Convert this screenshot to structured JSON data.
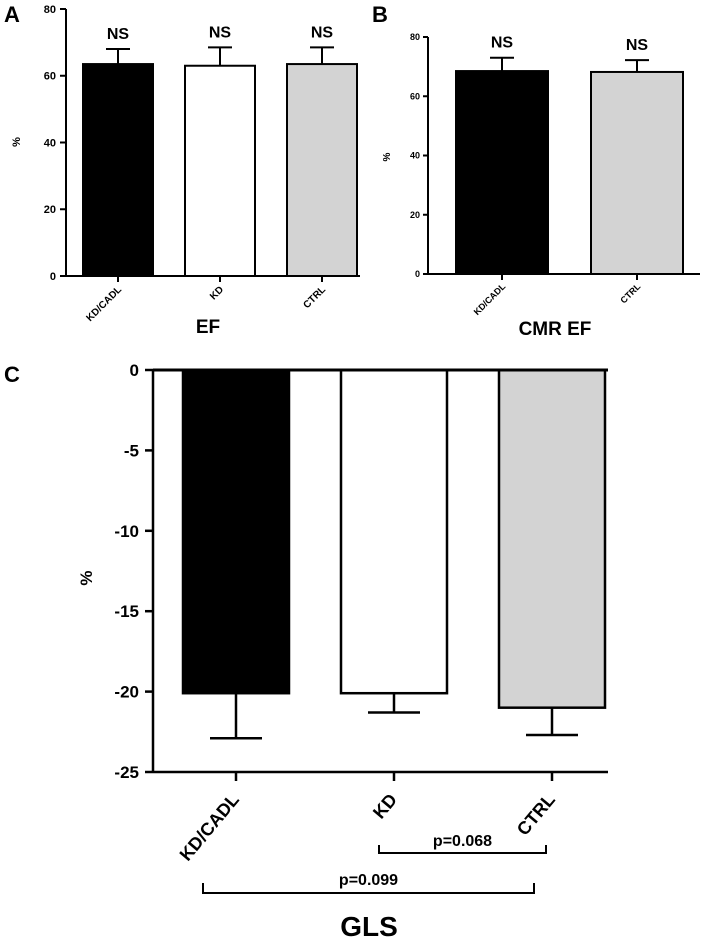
{
  "panels": {
    "a": "A",
    "b": "B",
    "c": "C"
  },
  "chart_data": [
    {
      "type": "bar",
      "panel": "A",
      "xlabel": "EF",
      "ylabel": "%",
      "ylim": [
        0,
        80
      ],
      "yticks": [
        0,
        20,
        40,
        60,
        80
      ],
      "categories": [
        "KD/CADL",
        "KD",
        "CTRL"
      ],
      "values": [
        63.5,
        63.0,
        63.5
      ],
      "errors": [
        4.5,
        5.5,
        5.0
      ],
      "colors": [
        "#000000",
        "#ffffff",
        "#d3d3d3"
      ],
      "annotations": [
        "NS",
        "NS",
        "NS"
      ]
    },
    {
      "type": "bar",
      "panel": "B",
      "xlabel": "CMR EF",
      "ylabel": "%",
      "ylim": [
        0,
        80
      ],
      "yticks": [
        0,
        20,
        40,
        60,
        80
      ],
      "categories": [
        "KD/CADL",
        "CTRL"
      ],
      "values": [
        68.5,
        68.2
      ],
      "errors": [
        4.5,
        4.0
      ],
      "colors": [
        "#000000",
        "#d3d3d3"
      ],
      "annotations": [
        "NS",
        "NS"
      ]
    },
    {
      "type": "bar",
      "panel": "C",
      "xlabel": "GLS",
      "ylabel": "%",
      "ylim": [
        -25,
        0
      ],
      "yticks": [
        0,
        -5,
        -10,
        -15,
        -20,
        -25
      ],
      "categories": [
        "KD/CADL",
        "KD",
        "CTRL"
      ],
      "values": [
        -20.1,
        -20.1,
        -21.0
      ],
      "errors": [
        2.8,
        1.2,
        1.7
      ],
      "colors": [
        "#000000",
        "#ffffff",
        "#d3d3d3"
      ],
      "comparisons": [
        {
          "from": "KD",
          "to": "CTRL",
          "label": "p=0.068"
        },
        {
          "from": "KD/CADL",
          "to": "CTRL",
          "label": "p=0.099"
        }
      ]
    }
  ]
}
